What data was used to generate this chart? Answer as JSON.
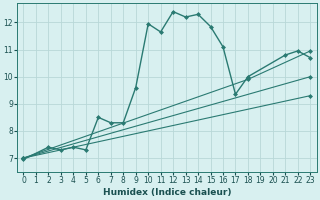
{
  "xlabel": "Humidex (Indice chaleur)",
  "bg_color": "#d8f0f0",
  "line_color": "#2a7a72",
  "grid_color": "#b8d8d8",
  "xlim": [
    -0.5,
    23.5
  ],
  "ylim": [
    6.5,
    12.7
  ],
  "yticks": [
    7,
    8,
    9,
    10,
    11,
    12
  ],
  "xticks": [
    0,
    1,
    2,
    3,
    4,
    5,
    6,
    7,
    8,
    9,
    10,
    11,
    12,
    13,
    14,
    15,
    16,
    17,
    18,
    19,
    20,
    21,
    22,
    23
  ],
  "series": [
    {
      "x": [
        0,
        2,
        3,
        4,
        5,
        6,
        7,
        8,
        9,
        10,
        11,
        12,
        13,
        14,
        15,
        16,
        17,
        18,
        21,
        22,
        23
      ],
      "y": [
        6.95,
        7.4,
        7.3,
        7.4,
        7.3,
        8.5,
        8.3,
        8.3,
        9.6,
        11.95,
        11.65,
        12.4,
        12.2,
        12.3,
        11.85,
        11.1,
        9.35,
        10.0,
        10.8,
        10.95,
        10.7
      ]
    },
    {
      "x": [
        0,
        23
      ],
      "y": [
        7.0,
        9.3
      ]
    },
    {
      "x": [
        0,
        23
      ],
      "y": [
        7.0,
        10.0
      ]
    },
    {
      "x": [
        0,
        18,
        23
      ],
      "y": [
        7.0,
        9.9,
        10.95
      ]
    }
  ]
}
